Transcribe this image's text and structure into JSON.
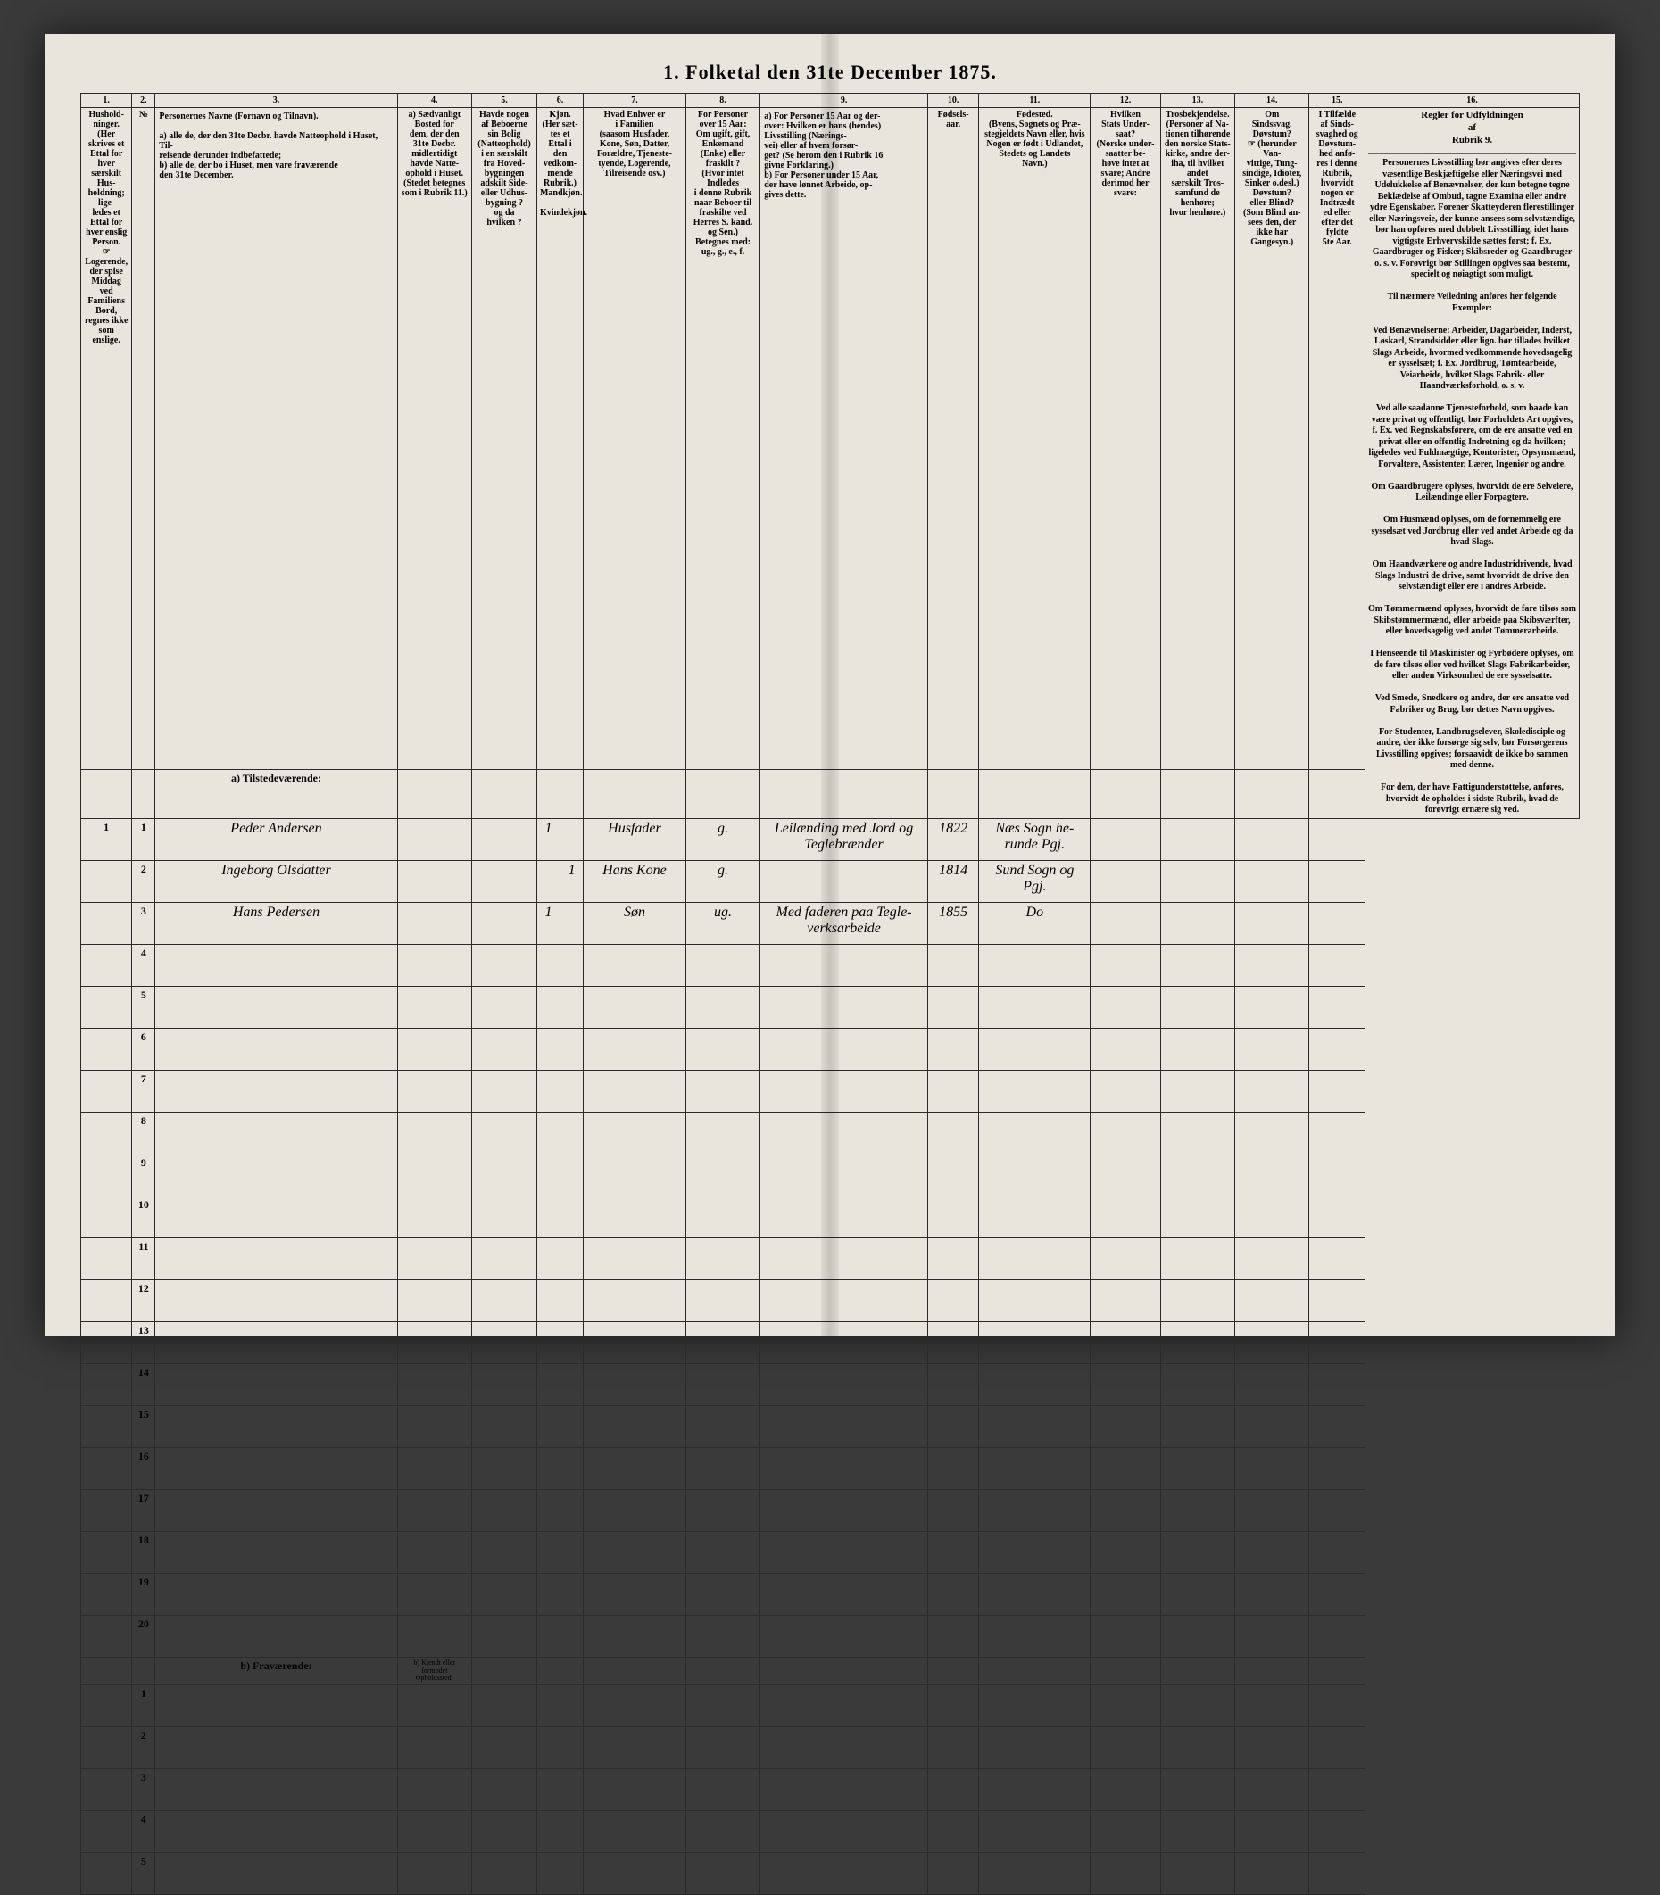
{
  "title": "1. Folketal den 31te December 1875.",
  "columns": [
    "1.",
    "2.",
    "3.",
    "4.",
    "5.",
    "6.",
    "7.",
    "8.",
    "9.",
    "10.",
    "11.",
    "12.",
    "13.",
    "14.",
    "15.",
    "16."
  ],
  "headers": {
    "col1": "Hushold-\nninger.\n(Her skrives et\nEttal for hver\nsærskilt Hus-\nholdning; lige-\nledes et Ettal for\nhver enslig\nPerson.\n☞ Logerende,\nder spise Middag\nved Familiens\nBord, regnes ikke\nsom enslige.",
    "col2": "№",
    "col3": "Personernes Navne (Fornavn og Tilnavn).\n\na) alle de, der den 31te Decbr. havde Natteophold i Huset, Til-\nreisende derunder indbefattede;\nb) alle de, der bo i Huset, men vare fraværende\nden 31te December.",
    "col4": "a) Sædvanligt\nBosted for\ndem, der den\n31te Decbr.\nmidlertidigt\nhavde Natte-\nophold i Huset.\n(Stedet betegnes\nsom i Rubrik 11.)",
    "col5": "Havde nogen\naf Beboerne\nsin Bolig\n(Natteophold)\ni en særskilt\nfra Hoved-\nbygningen\nadskilt Side-\neller Udhus-\nbygning ?\nog da\nhvilken ?",
    "col6": "Kjøn.\n(Her sæt-\ntes et\nEttal i\nden\nvedkom-\nmende\nRubrik.)\nMandkjøn. | Kvindekjøn.",
    "col7": "Hvad Enhver er\ni Familien\n(saasom Husfader,\nKone, Søn, Datter,\nForældre, Tjeneste-\ntyende, Logerende,\nTilreisende osv.)",
    "col8": "For Personer\nover 15 Aar:\nOm ugift, gift,\nEnkemand\n(Enke) eller\nfraskilt ?\n(Hvor intet Indledes\ni denne Rubrik\nnaar Beboer til\nfraskilte ved\nHerres S. kand.\nog Sen.)\nBetegnes med:\nug., g., e., f.",
    "col9": "a) For Personer 15 Aar og der-\nover: Hvilken er hans (hendes)\nLivsstilling (Nærings-\nvei) eller af hvem forsør-\nget? (Se herom den i Rubrik 16\ngivne Forklaring.)\nb) For Personer under 15 Aar,\nder have lønnet Arbeide, op-\ngives dette.",
    "col10": "Fødsels-\naar.",
    "col11": "Fødested.\n(Byens, Sognets og Præ-\nstegjeldets Navn eller, hvis\nNogen er født i Udlandet,\nStedets og Landets\nNavn.)",
    "col12": "Hvilken\nStats Under-\nsaat?\n(Norske under-\nsaatter be-\nhøve intet at\nsvare; Andre derimod her\nsvare:",
    "col13": "Trosbekjendelse.\n(Personer af Na-\ntionen tilhørende\nden norske Stats-\nkirke, andre der-\niha, til hvilket andet\nsærskilt Tros-\nsamfund de henhøre;\nhvor henhøre.)",
    "col14": "Om\nSindssvag.\nDøvstum?\n☞ (herunder Van-\nvittige, Tung-\nsindige, Idioter,\nSinker o.desl.)\nDøvstum?\neller Blind?\n(Som Blind an-\nsees den, der\nikke har\nGangesyn.)",
    "col15": "I Tilfælde\naf Sinds-\nsvaghed og\nDøvstum-\nhed anfø-\nres i denne\nRubrik,\nhvorvidt\nnogen er\nIndtrædt\ned eller\nefter det\nfyldte\n5te Aar.",
    "col16_title": "Regler for Udfyldningen\naf\nRubrik 9."
  },
  "section_a": "a) Tilstedeværende:",
  "section_b": "b) Fraværende:",
  "section_b_col4": "b) Kjendt eller\nformodet\nOpholdssted:",
  "rows_a": [
    {
      "num": "1",
      "col1": "1",
      "name": "Peder Andersen",
      "c6a": "1",
      "c6b": "",
      "c7": "Husfader",
      "c8": "g.",
      "c9": "Leilænding med Jord og Teglebrænder",
      "c10": "1822",
      "c11": "Næs Sogn he-\nrunde Pgj."
    },
    {
      "num": "2",
      "col1": "",
      "name": "Ingeborg Olsdatter",
      "c6a": "",
      "c6b": "1",
      "c7": "Hans Kone",
      "c8": "g.",
      "c9": "",
      "c10": "1814",
      "c11": "Sund Sogn og\nPgj."
    },
    {
      "num": "3",
      "col1": "",
      "name": "Hans Pedersen",
      "c6a": "1",
      "c6b": "",
      "c7": "Søn",
      "c8": "ug.",
      "c9": "Med faderen paa Tegle-\nverksarbeide",
      "c10": "1855",
      "c11": "Do"
    },
    {
      "num": "4"
    },
    {
      "num": "5"
    },
    {
      "num": "6"
    },
    {
      "num": "7"
    },
    {
      "num": "8"
    },
    {
      "num": "9"
    },
    {
      "num": "10"
    },
    {
      "num": "11"
    },
    {
      "num": "12"
    },
    {
      "num": "13"
    },
    {
      "num": "14"
    },
    {
      "num": "15"
    },
    {
      "num": "16"
    },
    {
      "num": "17"
    },
    {
      "num": "18"
    },
    {
      "num": "19"
    },
    {
      "num": "20"
    }
  ],
  "rows_b": [
    {
      "num": "1"
    },
    {
      "num": "2"
    },
    {
      "num": "3"
    },
    {
      "num": "4"
    },
    {
      "num": "5"
    }
  ],
  "instructions": "Personernes Livsstilling bør angives efter deres væsentlige Beskjæftigelse eller Næringsvei med Udelukkelse af Benævnelser, der kun betegne tegne Beklædelse af Ombud, tagne Examina eller andre ydre Egenskaber. Forener Skatteyderen flerestillinger eller Næringsveie, der kunne ansees som selvstændige, bør han opføres med dobbelt Livsstilling, idet hans vigtigste Erhvervskilde sættes først; f. Ex. Gaardbruger og Fisker; Skibsreder og Gaardbruger o. s. v. Forøvrigt bør Stillingen opgives saa bestemt, specielt og nøiagtigt som muligt.\n\nTil nærmere Veiledning anføres her følgende Exempler:\n\nVed Benævnelserne: Arbeider, Dagarbeider, Inderst, Løskarl, Strandsidder eller lign. bør tillades hvilket Slags Arbeide, hvormed vedkommende hovedsagelig er sysselsæt; f. Ex. Jordbrug, Tømtearbeide, Veiarbeide, hvilket Slags Fabrik- eller Haandværksforhold, o. s. v.\n\nVed alle saadanne Tjenesteforhold, som baade kan være privat og offentligt, bør Forholdets Art opgives, f. Ex. ved Regnskabsførere, om de ere ansatte ved en privat eller en offentlig Indretning og da hvilken; ligeledes ved Fuldmægtige, Kontorister, Opsynsmænd, Forvaltere, Assistenter, Lærer, Ingeniør og andre.\n\nOm Gaardbrugere oplyses, hvorvidt de ere Selveiere, Leilændinge eller Forpagtere.\n\nOm Husmænd oplyses, om de fornemmelig ere sysselsæt ved Jordbrug eller ved andet Arbeide og da hvad Slags.\n\nOm Haandværkere og andre Industridrivende, hvad Slags Industri de drive, samt hvorvidt de drive den selvstændigt eller ere i andres Arbeide.\n\nOm Tømmermænd oplyses, hvorvidt de fare tilsøs som Skibstømmermænd, eller arbeide paa Skibsværfter, eller hovedsagelig ved andet Tømmerarbeide.\n\nI Henseende til Maskinister og Fyrbødere oplyses, om de fare tilsøs eller ved hvilket Slags Fabrikarbeider, eller anden Virksomhed de ere sysselsatte.\n\nVed Smede, Snedkere og andre, der ere ansatte ved Fabriker og Brug, bør dettes Navn opgives.\n\nFor Studenter, Landbrugselever, Skoledisciple og andre, der ikke forsørge sig selv, bør Forsørgerens Livsstilling opgives; forsaavidt de ikke bo sammen med denne.\n\nFor dem, der have Fattigunderstøttelse, anføres, hvorvidt de opholdes i sidste Rubrik, hvad de forøvrigt ernære sig ved."
}
